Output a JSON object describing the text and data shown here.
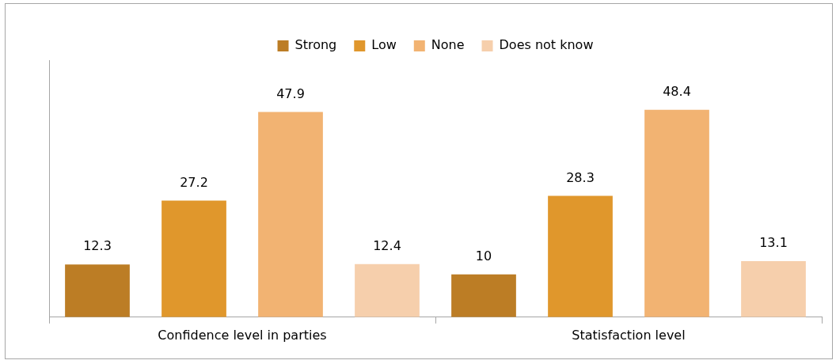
{
  "chart_data": {
    "type": "bar",
    "categories": [
      "Confidence level in parties",
      "Statisfaction level"
    ],
    "series": [
      {
        "name": "Strong",
        "color": "#bc7d25",
        "values": [
          12.3,
          10
        ]
      },
      {
        "name": "Low",
        "color": "#e0972c",
        "values": [
          27.2,
          28.3
        ]
      },
      {
        "name": "None",
        "color": "#f2b372",
        "values": [
          47.9,
          48.4
        ]
      },
      {
        "name": "Does not know",
        "color": "#f6cfac",
        "values": [
          12.4,
          13.1
        ]
      }
    ],
    "data_labels": true,
    "legend": "top",
    "grid": false
  }
}
